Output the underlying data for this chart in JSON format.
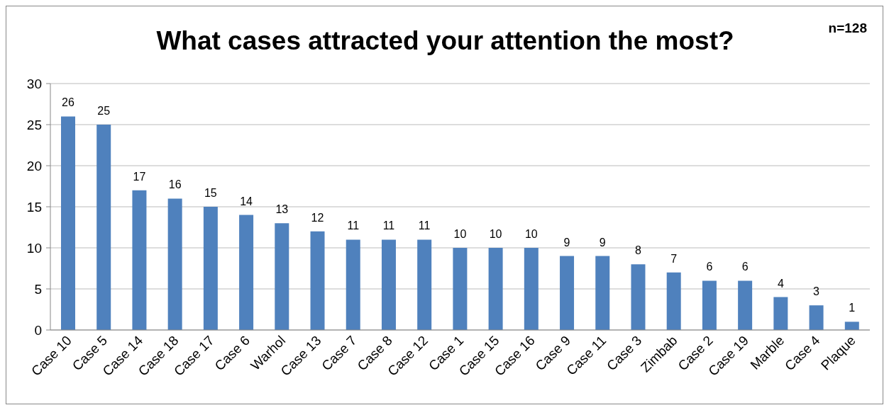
{
  "chart_data": {
    "type": "bar",
    "title": "What cases attracted your attention the most?",
    "annotations": [
      "n=128"
    ],
    "categories": [
      "Case 10",
      "Case 5",
      "Case 14",
      "Case 18",
      "Case 17",
      "Case 6",
      "Warhol",
      "Case 13",
      "Case 7",
      "Case 8",
      "Case 12",
      "Case 1",
      "Case 15",
      "Case 16",
      "Case 9",
      "Case 11",
      "Case 3",
      "Zimbab",
      "Case 2",
      "Case 19",
      "Marble",
      "Case 4",
      "Plaque"
    ],
    "values": [
      26,
      25,
      17,
      16,
      15,
      14,
      13,
      12,
      11,
      11,
      11,
      10,
      10,
      10,
      9,
      9,
      8,
      7,
      6,
      6,
      4,
      3,
      1
    ],
    "color": "#4f81bd",
    "ylim": [
      0,
      30
    ],
    "yticks": [
      0,
      5,
      10,
      15,
      20,
      25,
      30
    ],
    "grid": "y",
    "data_labels": true
  }
}
